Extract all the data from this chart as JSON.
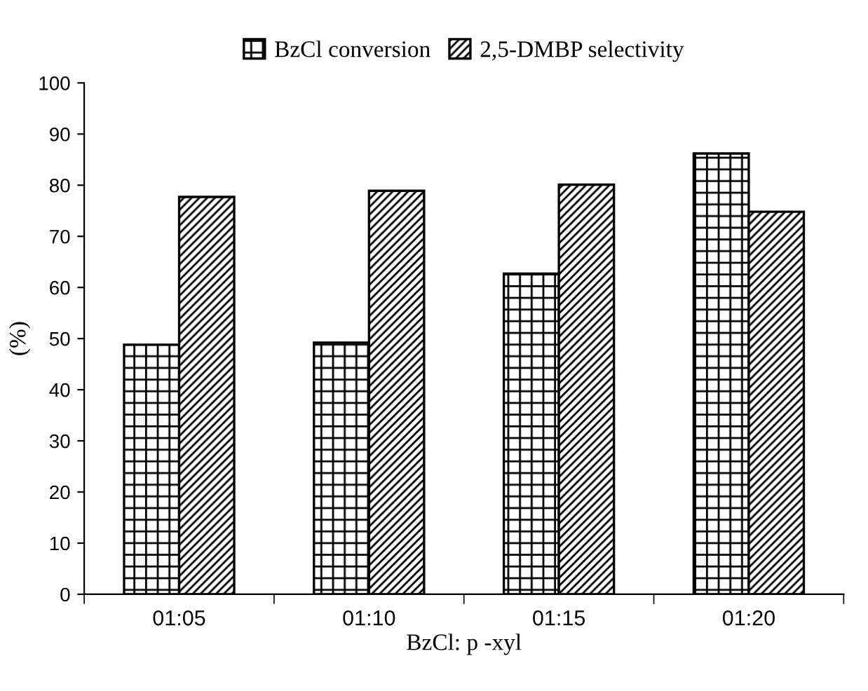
{
  "chart_data": {
    "type": "bar",
    "categories": [
      "01:05",
      "01:10",
      "01:15",
      "01:20"
    ],
    "series": [
      {
        "name": "BzCl conversion",
        "color": "#000000",
        "values": [
          48.8,
          49.2,
          62.7,
          86.2
        ]
      },
      {
        "name": "2,5-DMBP selectivity",
        "color": "#000000",
        "values": [
          77.7,
          78.9,
          80.1,
          74.8
        ]
      }
    ],
    "xlabel": "BzCl: p -xyl",
    "ylabel": "(%)",
    "ylim": [
      0,
      100
    ],
    "yticks": [
      0,
      10,
      20,
      30,
      40,
      50,
      60,
      70,
      80,
      90,
      100
    ],
    "grid": false,
    "legend": "top"
  }
}
